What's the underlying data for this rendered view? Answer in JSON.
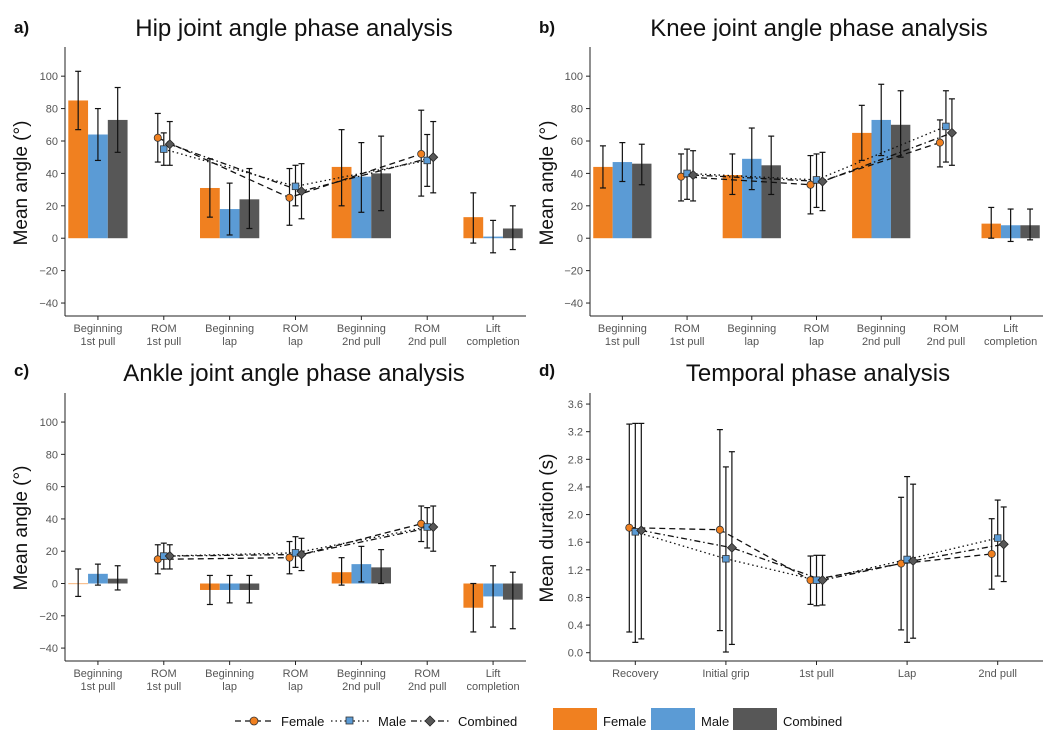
{
  "colors": {
    "female": "#F08020",
    "male": "#5B9BD5",
    "combined": "#575757",
    "axis": "#222222",
    "errorbar": "#111111"
  },
  "legend": {
    "lines": [
      {
        "label": "Female",
        "dash": "dashed",
        "marker": "circle",
        "color": "#F08020"
      },
      {
        "label": "Male",
        "dash": "dotted",
        "marker": "square",
        "color": "#5B9BD5"
      },
      {
        "label": "Combined",
        "dash": "dotdash",
        "marker": "diamond",
        "color": "#575757"
      }
    ],
    "bars": [
      {
        "label": "Female",
        "color": "#F08020"
      },
      {
        "label": "Male",
        "color": "#5B9BD5"
      },
      {
        "label": "Combined",
        "color": "#575757"
      }
    ]
  },
  "chart_data": [
    {
      "panel_label": "a)",
      "title": "Hip joint angle phase analysis",
      "type": "bar",
      "ylabel": "Mean angle (°)",
      "ylim": [
        -48,
        118
      ],
      "yticks": [
        -40,
        -20,
        0,
        20,
        40,
        60,
        80,
        100
      ],
      "categories": [
        "Beginning\n1st pull",
        "ROM\n1st pull",
        "Beginning\nlap",
        "ROM\nlap",
        "Beginning\n2nd pull",
        "ROM\n2nd pull",
        "Lift\ncompletion"
      ],
      "bar_categories": [
        0,
        2,
        4,
        6
      ],
      "bar_series": [
        {
          "name": "Female",
          "values": [
            85,
            31,
            44,
            13
          ],
          "err": [
            [
              67,
              103
            ],
            [
              13,
              49
            ],
            [
              20,
              67
            ],
            [
              -3,
              28
            ]
          ]
        },
        {
          "name": "Male",
          "values": [
            64,
            18,
            38,
            1
          ],
          "err": [
            [
              48,
              80
            ],
            [
              2,
              34
            ],
            [
              16,
              59
            ],
            [
              -9,
              11
            ]
          ]
        },
        {
          "name": "Combined",
          "values": [
            73,
            24,
            40,
            6
          ],
          "err": [
            [
              53,
              93
            ],
            [
              6,
              43
            ],
            [
              17,
              63
            ],
            [
              -7,
              20
            ]
          ]
        }
      ],
      "point_categories": [
        1,
        3,
        5
      ],
      "point_series": [
        {
          "name": "Female",
          "values": [
            62,
            25,
            52
          ],
          "err": [
            [
              47,
              77
            ],
            [
              8,
              43
            ],
            [
              26,
              79
            ]
          ]
        },
        {
          "name": "Male",
          "values": [
            55,
            32,
            48
          ],
          "err": [
            [
              45,
              65
            ],
            [
              20,
              45
            ],
            [
              32,
              64
            ]
          ]
        },
        {
          "name": "Combined",
          "values": [
            58,
            29,
            50
          ],
          "err": [
            [
              45,
              72
            ],
            [
              12,
              46
            ],
            [
              28,
              72
            ]
          ]
        }
      ]
    },
    {
      "panel_label": "b)",
      "title": "Knee joint angle phase analysis",
      "type": "bar",
      "ylabel": "Mean angle (°)",
      "ylim": [
        -48,
        118
      ],
      "yticks": [
        -40,
        -20,
        0,
        20,
        40,
        60,
        80,
        100
      ],
      "categories": [
        "Beginning\n1st pull",
        "ROM\n1st pull",
        "Beginning\nlap",
        "ROM\nlap",
        "Beginning\n2nd pull",
        "ROM\n2nd pull",
        "Lift\ncompletion"
      ],
      "bar_categories": [
        0,
        2,
        4,
        6
      ],
      "bar_series": [
        {
          "name": "Female",
          "values": [
            44,
            39,
            65,
            9
          ],
          "err": [
            [
              31,
              57
            ],
            [
              27,
              52
            ],
            [
              48,
              82
            ],
            [
              0,
              19
            ]
          ]
        },
        {
          "name": "Male",
          "values": [
            47,
            49,
            73,
            8
          ],
          "err": [
            [
              35,
              59
            ],
            [
              30,
              68
            ],
            [
              51,
              95
            ],
            [
              -2,
              18
            ]
          ]
        },
        {
          "name": "Combined",
          "values": [
            46,
            45,
            70,
            8
          ],
          "err": [
            [
              33,
              58
            ],
            [
              27,
              63
            ],
            [
              50,
              91
            ],
            [
              -1,
              18
            ]
          ]
        }
      ],
      "point_categories": [
        1,
        3,
        5
      ],
      "point_series": [
        {
          "name": "Female",
          "values": [
            38,
            33,
            59
          ],
          "err": [
            [
              23,
              52
            ],
            [
              15,
              51
            ],
            [
              44,
              73
            ]
          ]
        },
        {
          "name": "Male",
          "values": [
            40,
            36,
            69
          ],
          "err": [
            [
              24,
              55
            ],
            [
              19,
              52
            ],
            [
              47,
              91
            ]
          ]
        },
        {
          "name": "Combined",
          "values": [
            39,
            35,
            65
          ],
          "err": [
            [
              23,
              54
            ],
            [
              17,
              53
            ],
            [
              45,
              86
            ]
          ]
        }
      ]
    },
    {
      "panel_label": "c)",
      "title": "Ankle joint angle phase analysis",
      "type": "bar",
      "ylabel": "Mean angle (°)",
      "ylim": [
        -48,
        118
      ],
      "yticks": [
        -40,
        -20,
        0,
        20,
        40,
        60,
        80,
        100
      ],
      "categories": [
        "Beginning\n1st pull",
        "ROM\n1st pull",
        "Beginning\nlap",
        "ROM\nlap",
        "Beginning\n2nd pull",
        "ROM\n2nd pull",
        "Lift\ncompletion"
      ],
      "bar_categories": [
        0,
        2,
        4,
        6
      ],
      "bar_series": [
        {
          "name": "Female",
          "values": [
            0,
            -4,
            7,
            -15
          ],
          "err": [
            [
              -8,
              9
            ],
            [
              -13,
              5
            ],
            [
              -1,
              16
            ],
            [
              -30,
              0
            ]
          ]
        },
        {
          "name": "Male",
          "values": [
            6,
            -4,
            12,
            -8
          ],
          "err": [
            [
              -1,
              12
            ],
            [
              -12,
              5
            ],
            [
              1,
              23
            ],
            [
              -27,
              11
            ]
          ]
        },
        {
          "name": "Combined",
          "values": [
            3,
            -4,
            10,
            -10
          ],
          "err": [
            [
              -4,
              11
            ],
            [
              -12,
              5
            ],
            [
              0,
              21
            ],
            [
              -28,
              7
            ]
          ]
        }
      ],
      "point_categories": [
        1,
        3,
        5
      ],
      "point_series": [
        {
          "name": "Female",
          "values": [
            15,
            16,
            37
          ],
          "err": [
            [
              6,
              24
            ],
            [
              6,
              26
            ],
            [
              26,
              48
            ]
          ]
        },
        {
          "name": "Male",
          "values": [
            17,
            19,
            35
          ],
          "err": [
            [
              9,
              25
            ],
            [
              10,
              29
            ],
            [
              22,
              47
            ]
          ]
        },
        {
          "name": "Combined",
          "values": [
            17,
            18,
            35
          ],
          "err": [
            [
              9,
              24
            ],
            [
              8,
              28
            ],
            [
              20,
              48
            ]
          ]
        }
      ]
    },
    {
      "panel_label": "d)",
      "title": "Temporal phase analysis",
      "type": "line",
      "ylabel": "Mean duration (s)",
      "ylim": [
        -0.12,
        3.76
      ],
      "yticks": [
        0.0,
        0.4,
        0.8,
        1.2,
        1.6,
        2.0,
        2.4,
        2.8,
        3.2,
        3.6
      ],
      "yticks_labels": [
        "0.0",
        "0.4",
        "0.8",
        "1.2",
        "1.6",
        "2.0",
        "2.4",
        "2.8",
        "3.2",
        "3.6"
      ],
      "categories": [
        "Recovery",
        "Initial grip",
        "1st pull",
        "Lap",
        "2nd pull"
      ],
      "point_categories": [
        0,
        1,
        2,
        3,
        4
      ],
      "point_series": [
        {
          "name": "Female",
          "values": [
            1.81,
            1.78,
            1.05,
            1.29,
            1.43
          ],
          "err": [
            [
              0.3,
              3.31
            ],
            [
              0.32,
              3.23
            ],
            [
              0.7,
              1.4
            ],
            [
              0.33,
              2.25
            ],
            [
              0.92,
              1.94
            ]
          ]
        },
        {
          "name": "Male",
          "values": [
            1.75,
            1.36,
            1.05,
            1.35,
            1.66
          ],
          "err": [
            [
              0.15,
              3.32
            ],
            [
              0.01,
              2.69
            ],
            [
              0.68,
              1.41
            ],
            [
              0.15,
              2.55
            ],
            [
              1.11,
              2.21
            ]
          ]
        },
        {
          "name": "Combined",
          "values": [
            1.77,
            1.52,
            1.05,
            1.33,
            1.57
          ],
          "err": [
            [
              0.2,
              3.32
            ],
            [
              0.12,
              2.91
            ],
            [
              0.69,
              1.41
            ],
            [
              0.21,
              2.44
            ],
            [
              1.03,
              2.11
            ]
          ]
        }
      ]
    }
  ]
}
